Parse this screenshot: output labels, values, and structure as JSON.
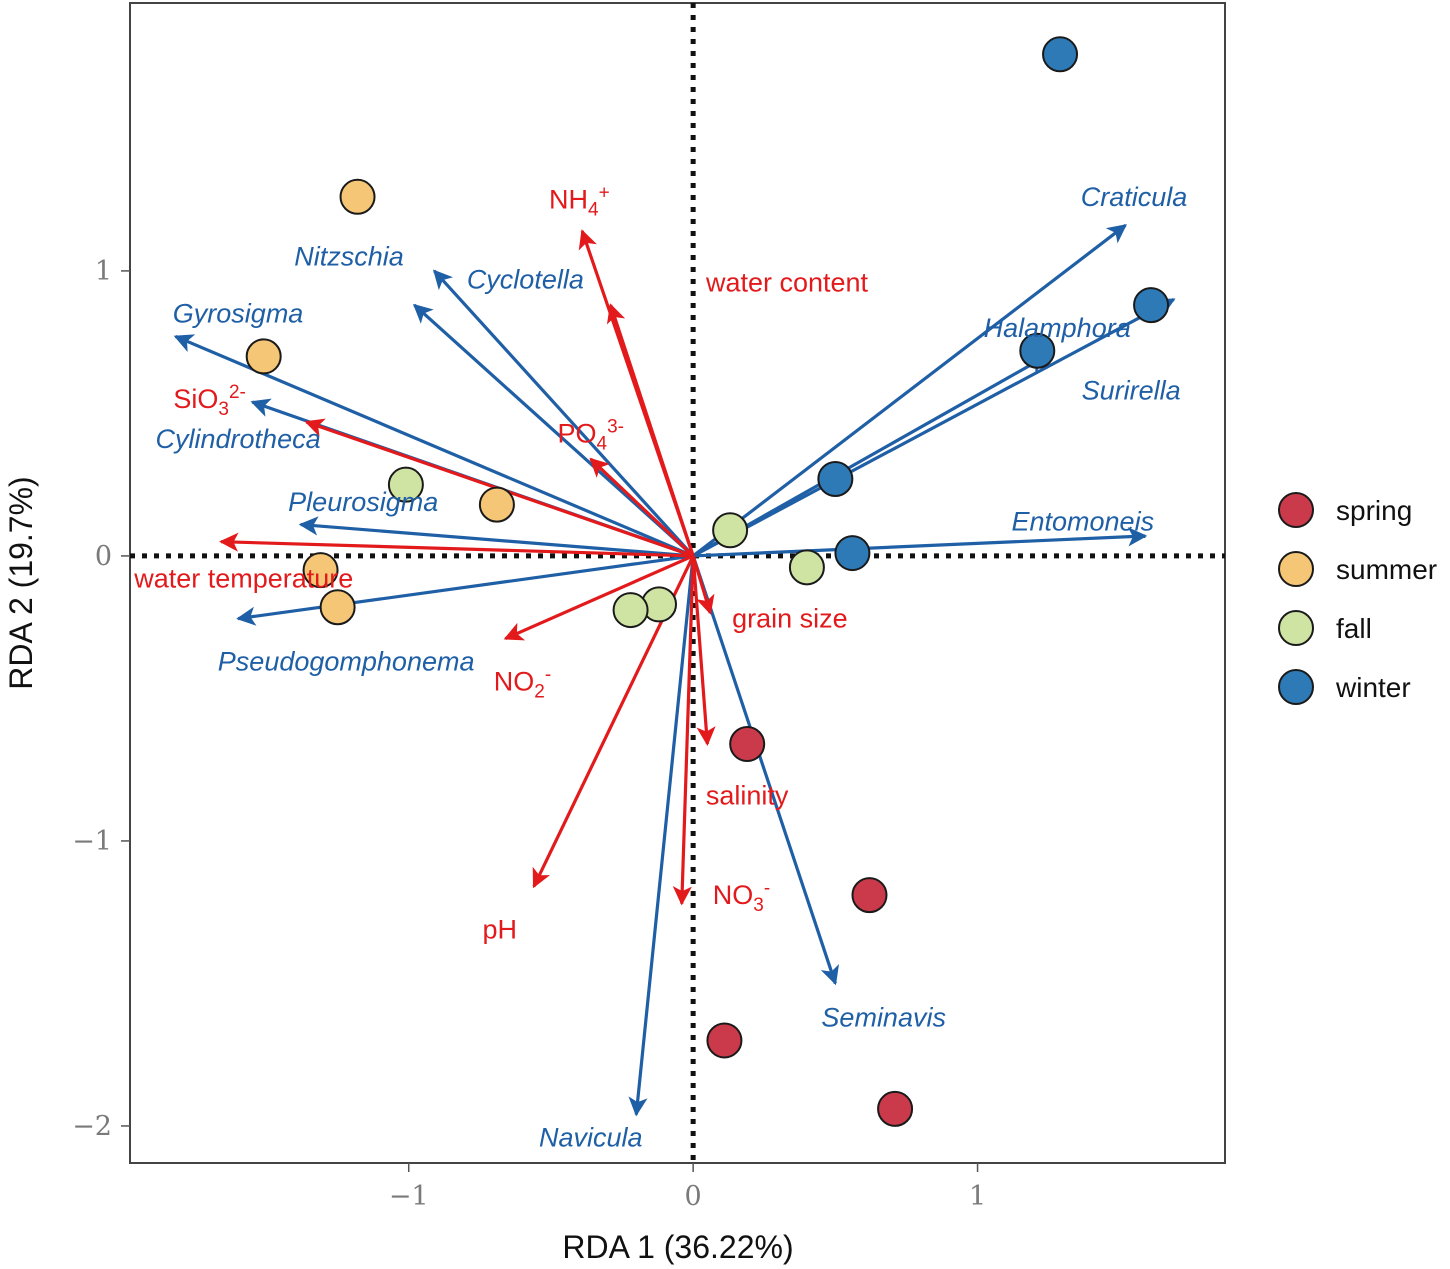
{
  "chart_data": {
    "type": "scatter",
    "subtype": "RDA triplot (biplot with environmental and species vectors)",
    "xlabel": "RDA 1 (36.22%)",
    "ylabel": "RDA 2 (19.7%)",
    "xlim": [
      -1.98,
      1.87
    ],
    "ylim": [
      -2.13,
      1.94
    ],
    "xticks": [
      -1,
      0,
      1
    ],
    "yticks": [
      -2,
      -1,
      0,
      1
    ],
    "xtick_labels": [
      "−1",
      "0",
      "1"
    ],
    "ytick_labels": [
      "−2",
      "−1",
      "0",
      "1"
    ],
    "grid": false,
    "origin_lines": "dotted",
    "legend_position": "right",
    "colors": {
      "env": "#e31a1c",
      "species": "#1f5fa6",
      "spring": "#cb3a4b",
      "summer": "#f5c675",
      "fall": "#cfe3a3",
      "winter": "#2d7ab6"
    },
    "legend": [
      {
        "key": "spring",
        "label": "spring"
      },
      {
        "key": "summer",
        "label": "summer"
      },
      {
        "key": "fall",
        "label": "fall"
      },
      {
        "key": "winter",
        "label": "winter"
      }
    ],
    "env_vectors": [
      {
        "name": "NH4",
        "sup": "+",
        "x": -0.39,
        "y": 1.14,
        "lx": -0.4,
        "ly": 1.25
      },
      {
        "name": "water content",
        "x": -0.29,
        "y": 0.88,
        "lx": 0.33,
        "ly": 0.96
      },
      {
        "name": "PO4",
        "sup": "3-",
        "x": -0.36,
        "y": 0.34,
        "lx": -0.36,
        "ly": 0.43
      },
      {
        "name": "SiO3",
        "sup": "2-",
        "x": -1.36,
        "y": 0.47,
        "lx": -1.7,
        "ly": 0.55
      },
      {
        "name": "water temperature",
        "x": -1.66,
        "y": 0.05,
        "lx": -1.58,
        "ly": -0.08
      },
      {
        "name": "NO2",
        "sup": "-",
        "x": -0.66,
        "y": -0.29,
        "lx": -0.6,
        "ly": -0.44
      },
      {
        "name": "grain size",
        "x": 0.06,
        "y": -0.2,
        "lx": 0.34,
        "ly": -0.22
      },
      {
        "name": "salinity",
        "x": 0.05,
        "y": -0.66,
        "lx": 0.19,
        "ly": -0.84
      },
      {
        "name": "NO3",
        "sup": "-",
        "x": -0.04,
        "y": -1.22,
        "lx": 0.17,
        "ly": -1.19
      },
      {
        "name": "pH",
        "x": -0.56,
        "y": -1.16,
        "lx": -0.68,
        "ly": -1.31
      }
    ],
    "species_vectors": [
      {
        "name": "Craticula",
        "x": 1.52,
        "y": 1.16,
        "lx": 1.55,
        "ly": 1.26
      },
      {
        "name": "Halamphora",
        "x": 1.69,
        "y": 0.9,
        "lx": 1.28,
        "ly": 0.8
      },
      {
        "name": "Surirella",
        "x": 1.24,
        "y": 0.7,
        "lx": 1.54,
        "ly": 0.58
      },
      {
        "name": "Entomoneis",
        "x": 1.59,
        "y": 0.07,
        "lx": 1.37,
        "ly": 0.12
      },
      {
        "name": "Seminavis",
        "x": 0.5,
        "y": -1.5,
        "lx": 0.67,
        "ly": -1.62
      },
      {
        "name": "Navicula",
        "x": -0.2,
        "y": -1.96,
        "lx": -0.36,
        "ly": -2.04
      },
      {
        "name": "Pseudogomphonema",
        "x": -1.6,
        "y": -0.22,
        "lx": -1.22,
        "ly": -0.37
      },
      {
        "name": "Pleurosigma",
        "x": -1.38,
        "y": 0.11,
        "lx": -1.16,
        "ly": 0.19
      },
      {
        "name": "Cylindrotheca",
        "x": -1.55,
        "y": 0.54,
        "lx": -1.6,
        "ly": 0.41
      },
      {
        "name": "Gyrosigma",
        "x": -1.82,
        "y": 0.77,
        "lx": -1.6,
        "ly": 0.85
      },
      {
        "name": "Nitzschia",
        "x": -0.91,
        "y": 1.0,
        "lx": -1.21,
        "ly": 1.05
      },
      {
        "name": "Cyclotella",
        "x": -0.98,
        "y": 0.88,
        "lx": -0.59,
        "ly": 0.97
      }
    ],
    "sample_points": [
      {
        "season": "summer",
        "x": -1.18,
        "y": 1.26
      },
      {
        "season": "summer",
        "x": -1.51,
        "y": 0.7
      },
      {
        "season": "summer",
        "x": -0.69,
        "y": 0.18
      },
      {
        "season": "summer",
        "x": -1.31,
        "y": -0.05
      },
      {
        "season": "summer",
        "x": -1.25,
        "y": -0.18
      },
      {
        "season": "fall",
        "x": -1.01,
        "y": 0.25
      },
      {
        "season": "fall",
        "x": 0.13,
        "y": 0.09
      },
      {
        "season": "fall",
        "x": 0.4,
        "y": -0.04
      },
      {
        "season": "fall",
        "x": -0.12,
        "y": -0.17
      },
      {
        "season": "fall",
        "x": -0.22,
        "y": -0.19
      },
      {
        "season": "winter",
        "x": 1.29,
        "y": 1.76
      },
      {
        "season": "winter",
        "x": 1.61,
        "y": 0.88
      },
      {
        "season": "winter",
        "x": 1.21,
        "y": 0.72
      },
      {
        "season": "winter",
        "x": 0.5,
        "y": 0.27
      },
      {
        "season": "winter",
        "x": 0.56,
        "y": 0.01
      },
      {
        "season": "spring",
        "x": 0.19,
        "y": -0.66
      },
      {
        "season": "spring",
        "x": 0.62,
        "y": -1.19
      },
      {
        "season": "spring",
        "x": 0.11,
        "y": -1.7
      },
      {
        "season": "spring",
        "x": 0.71,
        "y": -1.94
      }
    ]
  }
}
